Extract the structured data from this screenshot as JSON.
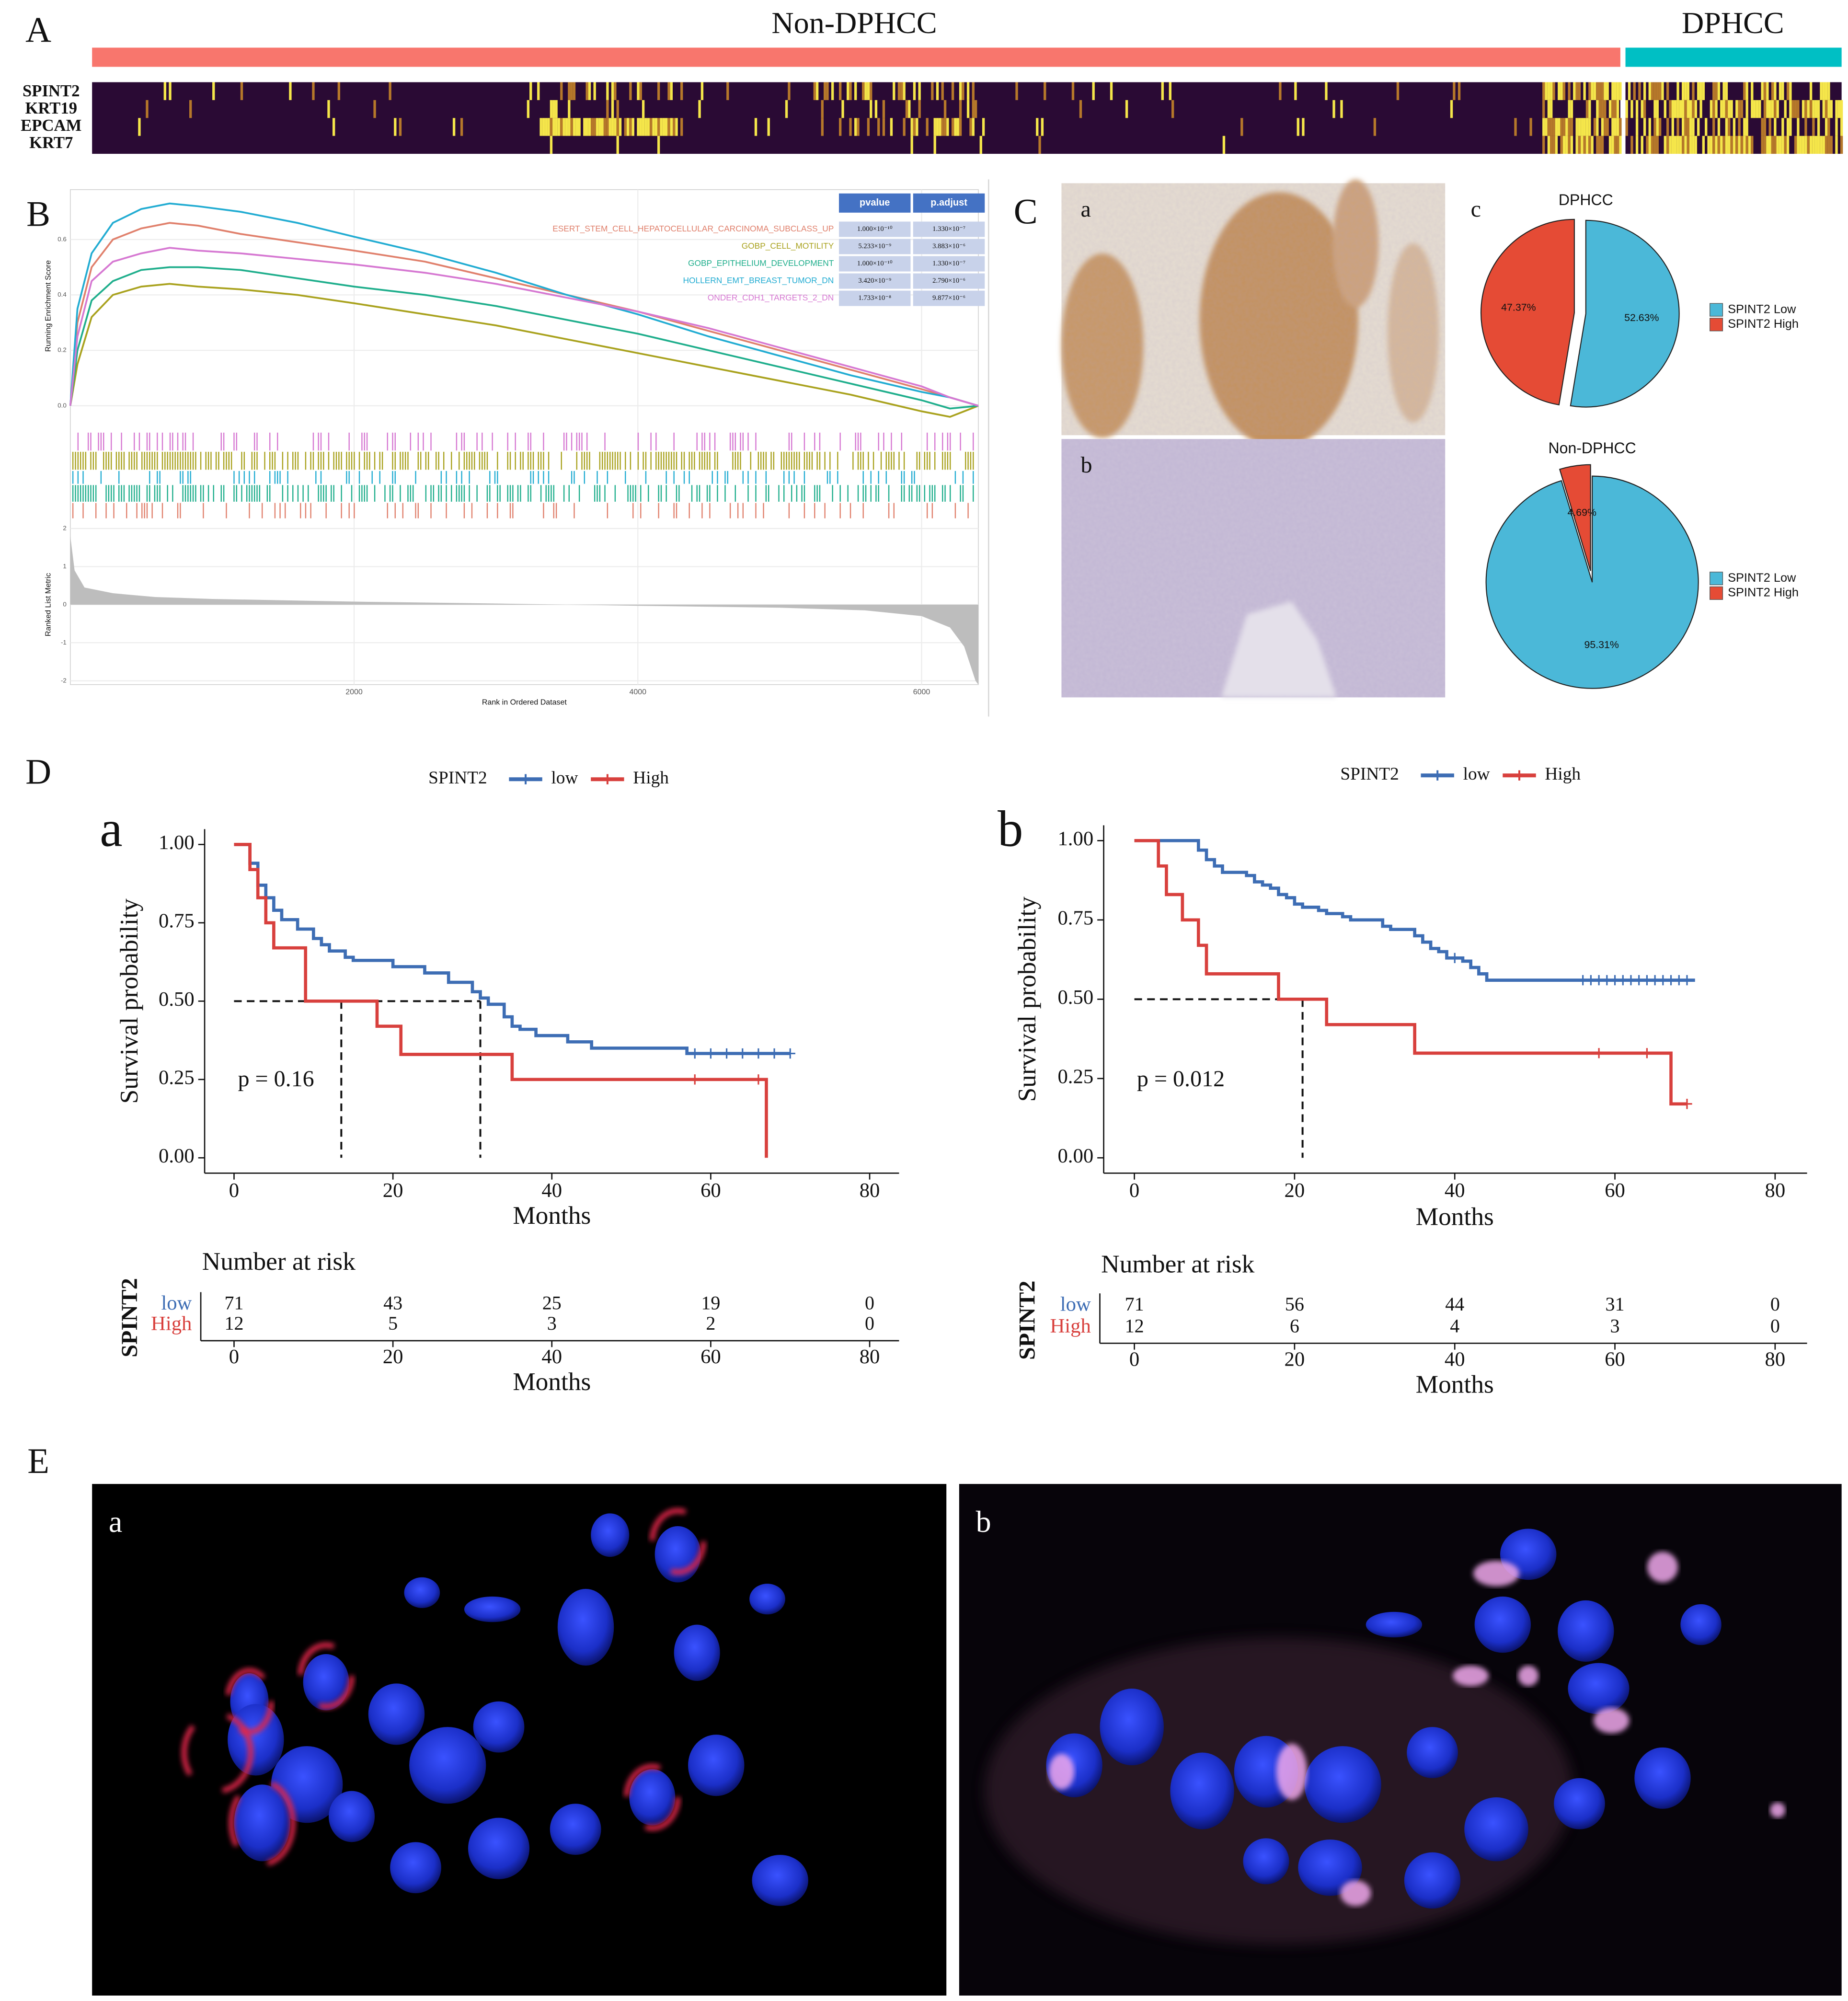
{
  "panel_labels": [
    "A",
    "B",
    "C",
    "D",
    "E"
  ],
  "image_labels": [
    "a",
    "b",
    "c"
  ],
  "fluorescence_labels": [
    "a",
    "b"
  ],
  "chart_data": [
    {
      "type": "heatmap",
      "groups": [
        "Non-DPHCC",
        "DPHCC"
      ],
      "group_colors": [
        "#f8766d",
        "#00bfc4"
      ],
      "rows": [
        "SPINT2",
        "KRT19",
        "EPCAM",
        "KRT7"
      ]
    },
    {
      "type": "gsea",
      "ylabel": "Running Enrichment Score",
      "ylabel2": "Ranked List Metric",
      "xlabel": "Rank in Ordered Dataset",
      "xlim": [
        0,
        6400
      ],
      "xticks": [
        2000,
        4000,
        6000
      ],
      "ylim": [
        -0.06,
        0.78
      ],
      "yticks": [
        {
          "value": 0,
          "label": "0.0"
        },
        0.2,
        0.4,
        0.6
      ],
      "y2lim": [
        -2.1,
        2.1
      ],
      "y2ticks": [
        -2,
        -1,
        0,
        1,
        2
      ],
      "x": [
        0,
        50,
        150,
        300,
        500,
        700,
        900,
        1200,
        1600,
        2000,
        2500,
        3000,
        3500,
        4000,
        4500,
        5000,
        5500,
        6000,
        6200,
        6400
      ],
      "series": [
        {
          "name": "ESERT_STEM_CELL_HEPATOCELLULAR_CARCINOMA_SUBCLASS_UP",
          "color": "#e0806c",
          "values": [
            0,
            0.3,
            0.5,
            0.6,
            0.64,
            0.66,
            0.65,
            0.62,
            0.59,
            0.56,
            0.52,
            0.46,
            0.4,
            0.34,
            0.27,
            0.2,
            0.13,
            0.06,
            0.03,
            0
          ]
        },
        {
          "name": "GOBP_CELL_MOTILITY",
          "color": "#a9a21e",
          "values": [
            0,
            0.15,
            0.32,
            0.4,
            0.43,
            0.44,
            0.43,
            0.42,
            0.4,
            0.37,
            0.33,
            0.29,
            0.24,
            0.19,
            0.14,
            0.09,
            0.04,
            -0.02,
            -0.04,
            0
          ]
        },
        {
          "name": "GOBP_EPITHELIUM_DEVELOPMENT",
          "color": "#1fae8c",
          "values": [
            0,
            0.2,
            0.38,
            0.45,
            0.49,
            0.5,
            0.5,
            0.49,
            0.46,
            0.43,
            0.4,
            0.36,
            0.31,
            0.26,
            0.2,
            0.14,
            0.08,
            0.02,
            -0.01,
            0
          ]
        },
        {
          "name": "HOLLERN_EMT_BREAST_TUMOR_DN",
          "color": "#22acd2",
          "values": [
            0,
            0.35,
            0.55,
            0.66,
            0.71,
            0.73,
            0.72,
            0.7,
            0.66,
            0.61,
            0.55,
            0.48,
            0.4,
            0.33,
            0.25,
            0.18,
            0.11,
            0.05,
            0.03,
            0
          ]
        },
        {
          "name": "ONDER_CDH1_TARGETS_2_DN",
          "color": "#d678d2",
          "values": [
            0,
            0.25,
            0.45,
            0.52,
            0.55,
            0.57,
            0.56,
            0.55,
            0.53,
            0.51,
            0.48,
            0.44,
            0.39,
            0.34,
            0.28,
            0.21,
            0.14,
            0.07,
            0.03,
            0
          ]
        }
      ],
      "table": {
        "columns": [
          "pvalue",
          "p.adjust"
        ],
        "rows": [
          [
            "1.000×10⁻¹⁰",
            "1.330×10⁻⁷"
          ],
          [
            "5.233×10⁻⁹",
            "3.883×10⁻⁶"
          ],
          [
            "1.000×10⁻¹⁰",
            "1.330×10⁻⁷"
          ],
          [
            "3.420×10⁻⁹",
            "2.790×10⁻⁶"
          ],
          [
            "1.733×10⁻⁸",
            "9.877×10⁻⁶"
          ]
        ]
      },
      "metric": {
        "x": [
          0,
          30,
          100,
          300,
          600,
          1000,
          2000,
          3000,
          4000,
          5000,
          5600,
          6000,
          6200,
          6300,
          6380,
          6400
        ],
        "values": [
          1.8,
          0.9,
          0.45,
          0.3,
          0.2,
          0.15,
          0.08,
          0.03,
          -0.03,
          -0.08,
          -0.15,
          -0.3,
          -0.6,
          -1.1,
          -2.0,
          -2.1
        ]
      }
    },
    {
      "type": "pie",
      "title": "DPHCC",
      "categories": [
        "SPINT2 Low",
        "SPINT2 High"
      ],
      "colors": [
        "#4bb8d8",
        "#e54b35"
      ],
      "values": [
        52.63,
        47.37
      ],
      "value_labels": [
        "52.63%",
        "47.37%"
      ]
    },
    {
      "type": "pie",
      "title": "Non-DPHCC",
      "categories": [
        "SPINT2 Low",
        "SPINT2 High"
      ],
      "colors": [
        "#4bb8d8",
        "#e54b35"
      ],
      "values": [
        95.31,
        4.69
      ],
      "value_labels": [
        "95.31%",
        "4.69%"
      ]
    },
    {
      "type": "km",
      "label": "a",
      "legend_title": "SPINT2",
      "xlabel": "Months",
      "ylabel": "Survival probability",
      "annotation": "p = 0.16",
      "xlim": [
        0,
        80
      ],
      "xticks": [
        0,
        20,
        40,
        60,
        80
      ],
      "ylim": [
        0,
        1
      ],
      "yticks": [
        {
          "value": 0,
          "label": "0.00"
        },
        0.25,
        {
          "value": 0.5,
          "label": "0.50"
        },
        0.75,
        {
          "value": 1,
          "label": "1.00"
        }
      ],
      "median_level": 0.5,
      "medians": [
        13.5,
        31
      ],
      "risk_title": "Number at risk",
      "series": [
        {
          "name": "low",
          "color": "#3d6db4",
          "x": [
            0,
            2,
            3,
            4,
            5,
            6,
            8,
            10,
            11,
            12,
            14,
            15,
            20,
            24,
            27,
            30,
            31,
            32,
            34,
            35,
            36,
            38,
            42,
            45,
            57,
            70
          ],
          "values": [
            1,
            0.94,
            0.87,
            0.83,
            0.79,
            0.76,
            0.73,
            0.7,
            0.68,
            0.66,
            0.64,
            0.63,
            0.61,
            0.59,
            0.56,
            0.53,
            0.51,
            0.49,
            0.45,
            0.42,
            0.41,
            0.39,
            0.37,
            0.35,
            0.333,
            0.333
          ],
          "censored": [
            58,
            60,
            62,
            64,
            66,
            68,
            70
          ],
          "at_risk": [
            71,
            43,
            25,
            19,
            0
          ]
        },
        {
          "name": "High",
          "color": "#d8403d",
          "x": [
            0,
            2,
            3,
            4,
            5,
            9,
            18,
            21,
            35,
            67
          ],
          "values": [
            1,
            0.92,
            0.83,
            0.75,
            0.67,
            0.5,
            0.42,
            0.33,
            0.25,
            0
          ],
          "censored": [
            58,
            66
          ],
          "at_risk": [
            12,
            5,
            3,
            2,
            0
          ]
        }
      ]
    },
    {
      "type": "km",
      "label": "b",
      "legend_title": "SPINT2",
      "xlabel": "Months",
      "ylabel": "Survival probability",
      "annotation": "p = 0.012",
      "xlim": [
        0,
        80
      ],
      "xticks": [
        0,
        20,
        40,
        60,
        80
      ],
      "ylim": [
        0,
        1
      ],
      "yticks": [
        {
          "value": 0,
          "label": "0.00"
        },
        0.25,
        {
          "value": 0.5,
          "label": "0.50"
        },
        0.75,
        {
          "value": 1,
          "label": "1.00"
        }
      ],
      "median_level": 0.5,
      "medians": [
        21
      ],
      "risk_title": "Number at risk",
      "series": [
        {
          "name": "low",
          "color": "#3d6db4",
          "x": [
            0,
            8,
            9,
            10,
            11,
            14,
            15,
            16,
            17,
            18,
            19,
            20,
            21,
            23,
            24,
            26,
            27,
            31,
            32,
            35,
            36,
            37,
            38,
            39,
            41,
            42,
            43,
            44,
            70
          ],
          "values": [
            1,
            0.97,
            0.94,
            0.92,
            0.9,
            0.89,
            0.87,
            0.86,
            0.85,
            0.83,
            0.82,
            0.8,
            0.79,
            0.78,
            0.77,
            0.76,
            0.75,
            0.73,
            0.72,
            0.7,
            0.68,
            0.66,
            0.65,
            0.63,
            0.62,
            0.6,
            0.58,
            0.56,
            0.56
          ],
          "censored": [
            40,
            56,
            57,
            58,
            59,
            60,
            61,
            62,
            63,
            64,
            65,
            66,
            67,
            68,
            69
          ],
          "at_risk": [
            71,
            56,
            44,
            31,
            0
          ]
        },
        {
          "name": "High",
          "color": "#d8403d",
          "x": [
            0,
            3,
            4,
            6,
            8,
            9,
            18,
            24,
            35,
            67,
            69
          ],
          "values": [
            1,
            0.92,
            0.83,
            0.75,
            0.67,
            0.58,
            0.5,
            0.42,
            0.33,
            0.17,
            0.17
          ],
          "censored": [
            58,
            64,
            69
          ],
          "at_risk": [
            12,
            6,
            4,
            3,
            0
          ]
        }
      ]
    }
  ]
}
